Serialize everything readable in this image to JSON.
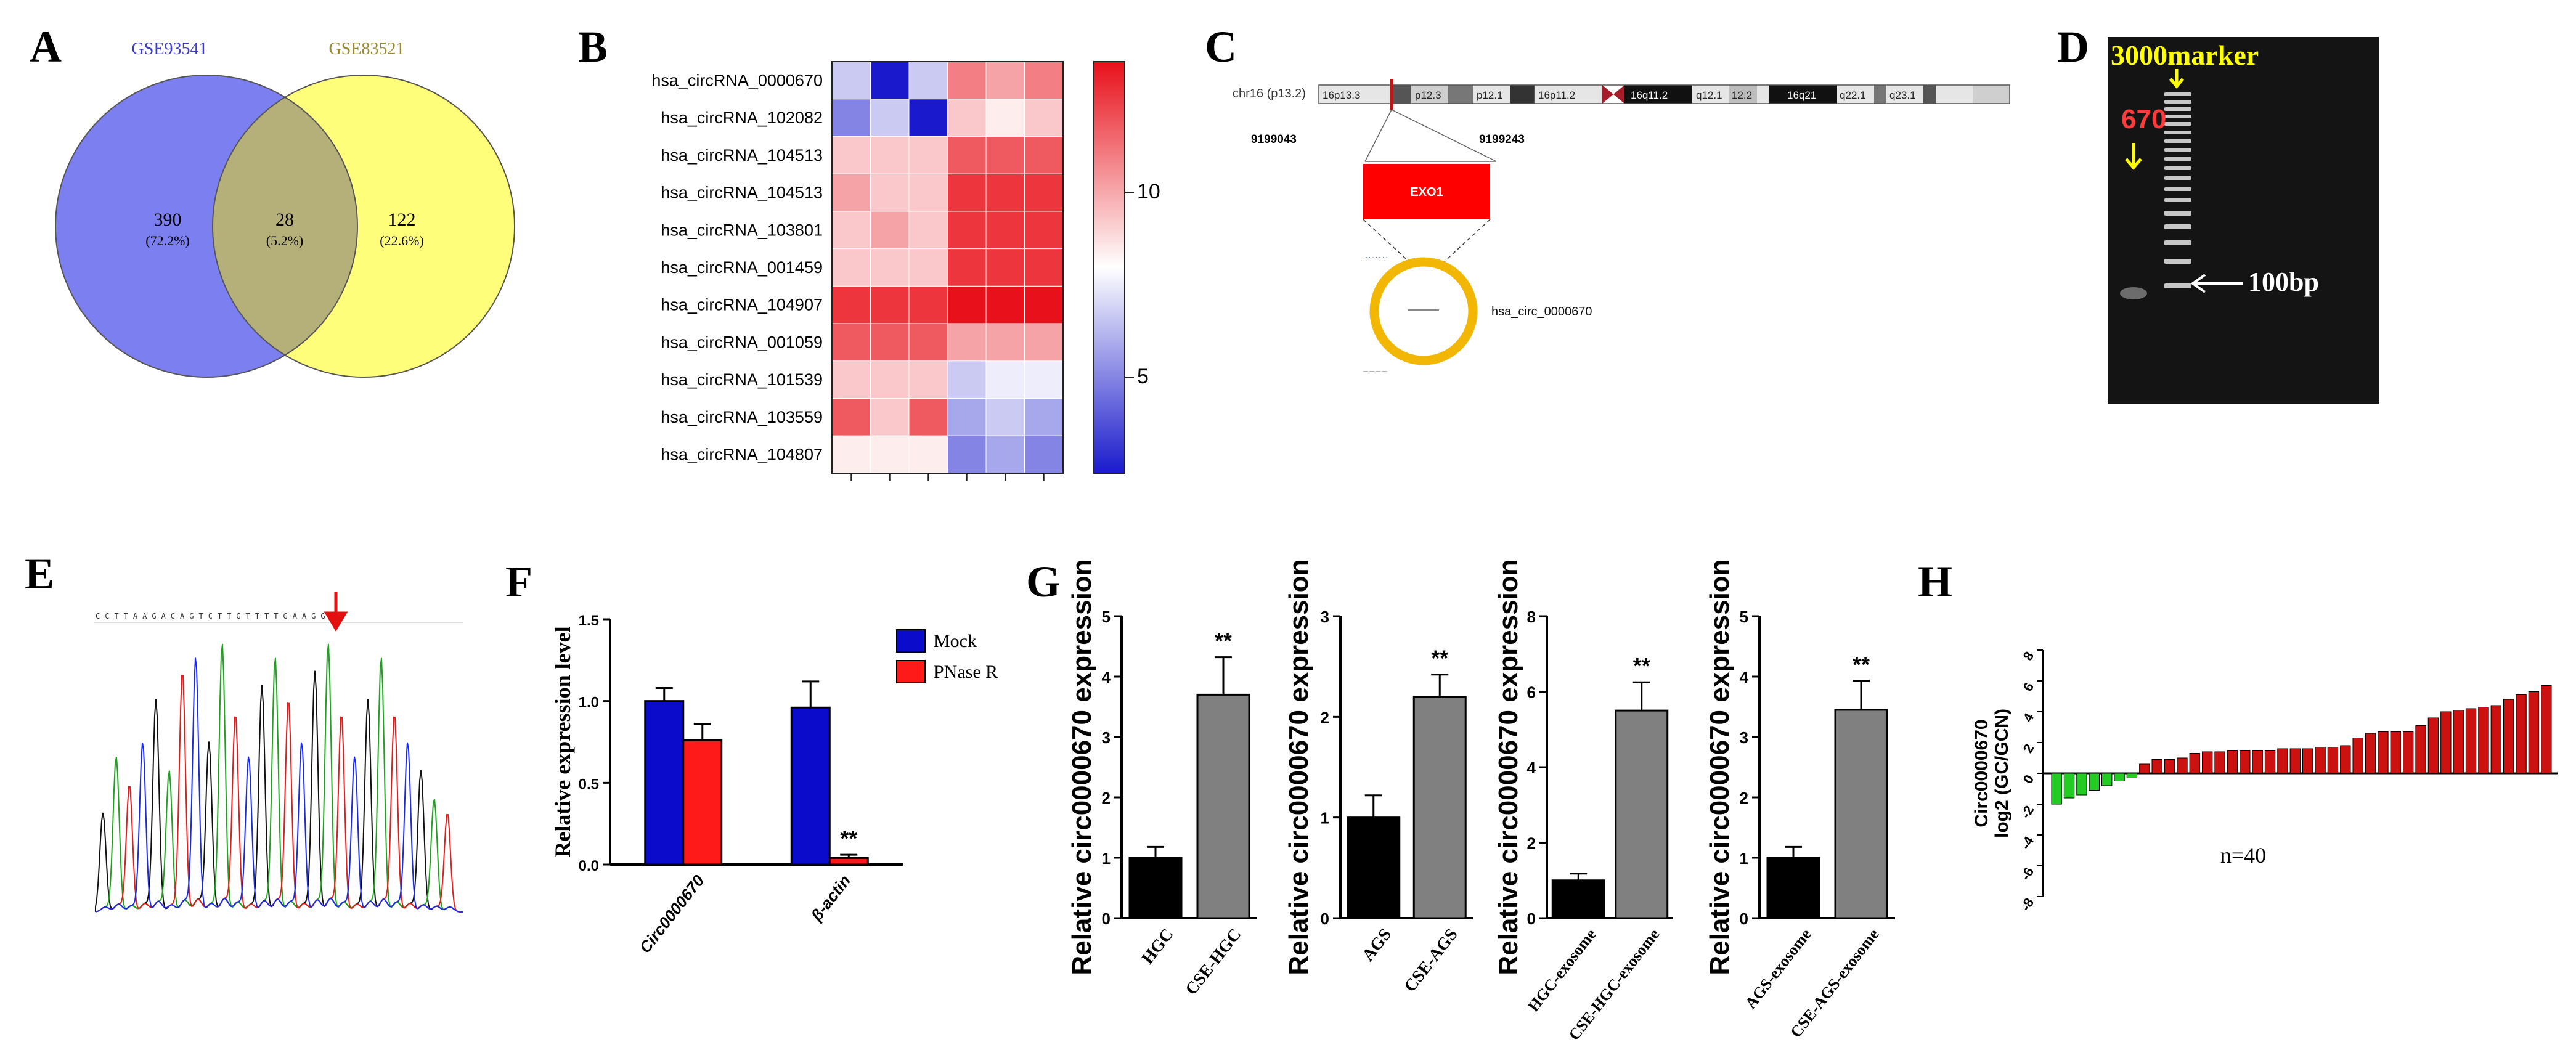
{
  "panel_labels": {
    "A": "A",
    "B": "B",
    "C": "C",
    "D": "D",
    "E": "E",
    "F": "F",
    "G": "G",
    "H": "H"
  },
  "venn": {
    "left_label": "GSE93541",
    "right_label": "GSE83521",
    "left_count": "390",
    "left_pct": "(72.2%)",
    "mid_count": "28",
    "mid_pct": "(5.2%)",
    "right_count": "122",
    "right_pct": "(22.6%)",
    "colors": {
      "left": "#7b7ff0",
      "right": "#fefe7a",
      "overlap": "#b5b07a"
    }
  },
  "heatmap": {
    "rows": [
      "hsa_circRNA_0000670",
      "hsa_circRNA_102082",
      "hsa_circRNA_104513",
      "hsa_circRNA_104513",
      "hsa_circRNA_103801",
      "hsa_circRNA_001459",
      "hsa_circRNA_104907",
      "hsa_circRNA_001059",
      "hsa_circRNA_101539",
      "hsa_circRNA_103559",
      "hsa_circRNA_104807"
    ],
    "values": [
      [
        6,
        1,
        6,
        11,
        10,
        11
      ],
      [
        4,
        6,
        1,
        9,
        8,
        9
      ],
      [
        9,
        9,
        9,
        12,
        12,
        12
      ],
      [
        10,
        9,
        9,
        13,
        13,
        13
      ],
      [
        9,
        10,
        9,
        13,
        13,
        13
      ],
      [
        9,
        9,
        9,
        13,
        13,
        13
      ],
      [
        13,
        13,
        13,
        14,
        14,
        14
      ],
      [
        12,
        12,
        12,
        10,
        10,
        10
      ],
      [
        9,
        9,
        9,
        6,
        7,
        7
      ],
      [
        12,
        9,
        12,
        5,
        6,
        5
      ],
      [
        8,
        8,
        8,
        4,
        5,
        4
      ]
    ],
    "colorbar_ticks": [
      "10",
      "5"
    ],
    "vmin": 1,
    "vmax": 14
  },
  "chrom": {
    "label": "chr16 (p13.2)",
    "bands": [
      "16p13.3",
      "p12.3",
      "p12.1",
      "16p11.2",
      "16q11.2",
      "q12.1",
      "12.2",
      "16q21",
      "q22.1",
      "q23.1"
    ],
    "coord_left": "9199043",
    "coord_right": "9199243",
    "gene": "EXO1",
    "circ_label": "hsa_circ_0000670"
  },
  "gel": {
    "marker_label": "3000marker",
    "band_label": "670",
    "ladder_label": "100bp"
  },
  "sanger": {
    "bases": "CCTTAAGACAGTCTTGTTTTGAAGGGA"
  },
  "chart_data": [
    {
      "panel": "F",
      "type": "bar",
      "categories": [
        "Circ0000670",
        "β-actin"
      ],
      "series": [
        {
          "name": "Mock",
          "values": [
            1.0,
            0.96
          ],
          "errors": [
            0.08,
            0.16
          ],
          "color": "#0b0bcc"
        },
        {
          "name": "PNase R",
          "values": [
            0.76,
            0.04
          ],
          "errors": [
            0.1,
            0.02
          ],
          "color": "#ff1a1a"
        }
      ],
      "significance": [
        "",
        "**"
      ],
      "ylabel": "Relative expression level",
      "ylim": [
        0,
        1.5
      ],
      "yticks": [
        "0.0",
        "0.5",
        "1.0",
        "1.5"
      ]
    },
    {
      "panel": "G1",
      "type": "bar",
      "categories": [
        "HGC",
        "CSE-HGC"
      ],
      "values": [
        1.0,
        3.7
      ],
      "errors": [
        0.18,
        0.62
      ],
      "colors": [
        "#000000",
        "#808080"
      ],
      "significance": [
        "",
        "**"
      ],
      "ylabel": "Relative circ0000670 expression",
      "ylim": [
        0,
        5
      ],
      "yticks": [
        "0",
        "1",
        "2",
        "3",
        "4",
        "5"
      ]
    },
    {
      "panel": "G2",
      "type": "bar",
      "categories": [
        "AGS",
        "CSE-AGS"
      ],
      "values": [
        1.0,
        2.2
      ],
      "errors": [
        0.22,
        0.22
      ],
      "colors": [
        "#000000",
        "#808080"
      ],
      "significance": [
        "",
        "**"
      ],
      "ylabel": "Relative circ0000670 expression",
      "ylim": [
        0,
        3
      ],
      "yticks": [
        "0",
        "1",
        "2",
        "3"
      ]
    },
    {
      "panel": "G3",
      "type": "bar",
      "categories": [
        "HGC-exosome",
        "CSE-HGC-exosome"
      ],
      "values": [
        1.0,
        5.5
      ],
      "errors": [
        0.18,
        0.75
      ],
      "colors": [
        "#000000",
        "#808080"
      ],
      "significance": [
        "",
        "**"
      ],
      "ylabel": "Relative circ0000670 expression",
      "ylim": [
        0,
        8
      ],
      "yticks": [
        "0",
        "2",
        "4",
        "6",
        "8"
      ]
    },
    {
      "panel": "G4",
      "type": "bar",
      "categories": [
        "AGS-exosome",
        "CSE-AGS-exosome"
      ],
      "values": [
        1.0,
        3.45
      ],
      "errors": [
        0.18,
        0.48
      ],
      "colors": [
        "#000000",
        "#808080"
      ],
      "significance": [
        "",
        "**"
      ],
      "ylabel": "Relative circ0000670 expression",
      "ylim": [
        0,
        5
      ],
      "yticks": [
        "0",
        "1",
        "2",
        "3",
        "4",
        "5"
      ]
    },
    {
      "panel": "H",
      "type": "bar",
      "values": [
        -2.0,
        -1.6,
        -1.4,
        -1.1,
        -0.8,
        -0.5,
        -0.3,
        0.6,
        0.9,
        0.9,
        1.0,
        1.3,
        1.4,
        1.4,
        1.5,
        1.5,
        1.5,
        1.5,
        1.6,
        1.6,
        1.6,
        1.7,
        1.7,
        1.8,
        2.3,
        2.6,
        2.7,
        2.7,
        2.7,
        3.1,
        3.6,
        4.0,
        4.1,
        4.2,
        4.3,
        4.4,
        4.8,
        5.1,
        5.3,
        5.7
      ],
      "colors": {
        "negative": "#22cc22",
        "positive": "#cc1111"
      },
      "ylabel": "Circ0000670",
      "ylabel2": "log2 (GC/GCN)",
      "ylim": [
        -8,
        8
      ],
      "yticks": [
        "8",
        "6",
        "4",
        "2",
        "0",
        "-2",
        "-4",
        "-6",
        "-8"
      ],
      "annotation": "n=40"
    }
  ]
}
